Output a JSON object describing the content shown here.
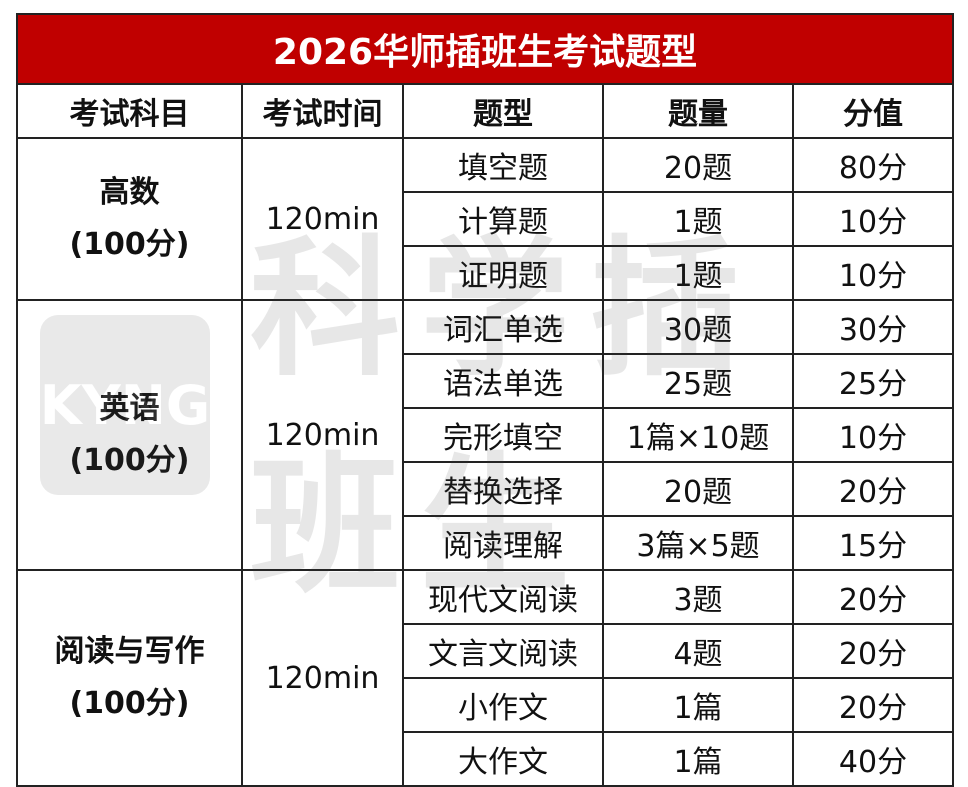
{
  "title": "2026华师插班生考试题型",
  "headers": [
    "考试科目",
    "考试时间",
    "题型",
    "题量",
    "分值"
  ],
  "subjects": [
    {
      "name": "高数",
      "total": "(100分)",
      "time": "120min",
      "items": [
        {
          "type": "填空题",
          "count": "20题",
          "score": "80分"
        },
        {
          "type": "计算题",
          "count": "1题",
          "score": "10分"
        },
        {
          "type": "证明题",
          "count": "1题",
          "score": "10分"
        }
      ]
    },
    {
      "name": "英语",
      "total": "(100分)",
      "time": "120min",
      "items": [
        {
          "type": "词汇单选",
          "count": "30题",
          "score": "30分"
        },
        {
          "type": "语法单选",
          "count": "25题",
          "score": "25分"
        },
        {
          "type": "完形填空",
          "count": "1篇×10题",
          "score": "10分"
        },
        {
          "type": "替换选择",
          "count": "20题",
          "score": "20分"
        },
        {
          "type": "阅读理解",
          "count": "3篇×5题",
          "score": "15分"
        }
      ]
    },
    {
      "name": "阅读与写作",
      "total": "(100分)",
      "time": "120min",
      "items": [
        {
          "type": "现代文阅读",
          "count": "3题",
          "score": "20分"
        },
        {
          "type": "文言文阅读",
          "count": "4题",
          "score": "20分"
        },
        {
          "type": "小作文",
          "count": "1篇",
          "score": "20分"
        },
        {
          "type": "大作文",
          "count": "1篇",
          "score": "40分"
        }
      ]
    }
  ],
  "watermark": {
    "logo": "KYNG",
    "text": "科学插班生"
  },
  "colors": {
    "title_bg": "#c00000",
    "title_fg": "#ffffff",
    "border": "#222222"
  }
}
